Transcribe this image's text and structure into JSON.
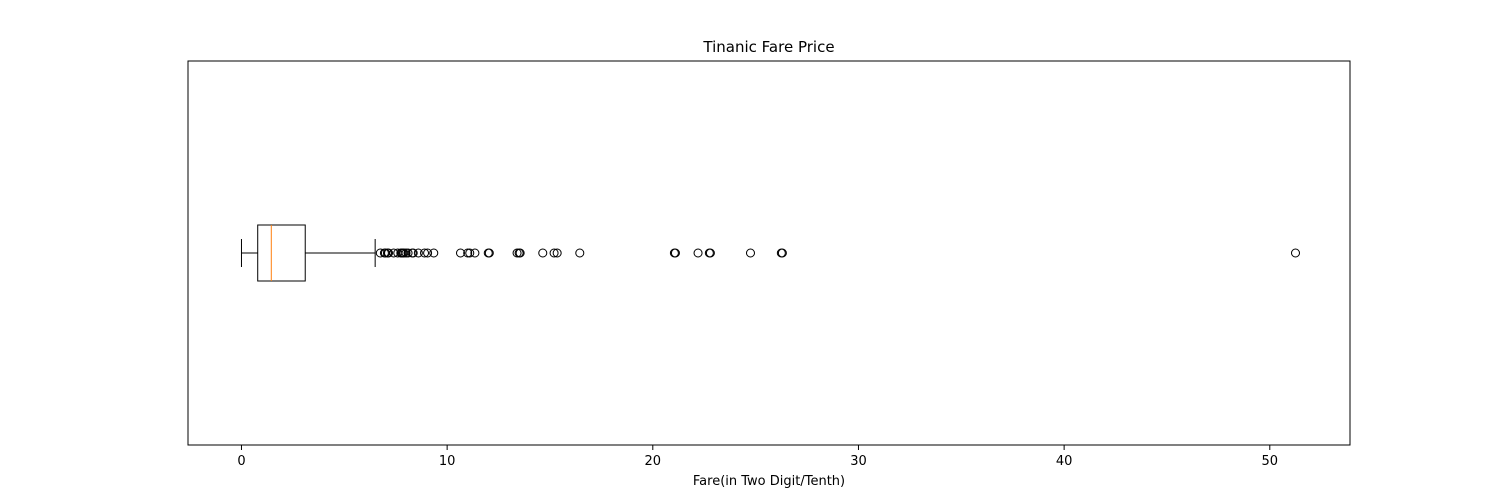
{
  "chart_data": {
    "type": "boxplot",
    "orientation": "horizontal",
    "title": "Tinanic Fare Price",
    "xlabel": "Fare(in Two Digit/Tenth)",
    "ylabel": "",
    "xlim": [
      -2.6,
      53.9
    ],
    "xticks": [
      0,
      10,
      20,
      30,
      40,
      50
    ],
    "xtick_labels": [
      "0",
      "10",
      "20",
      "30",
      "40",
      "50"
    ],
    "yticks_visible": false,
    "grid": false,
    "box": {
      "whisker_low": 0.0,
      "q1": 0.79,
      "median": 1.45,
      "q3": 3.1,
      "whisker_high": 6.5
    },
    "outliers": [
      6.75,
      6.95,
      7.0,
      7.1,
      7.15,
      7.4,
      7.6,
      7.75,
      7.8,
      7.85,
      7.9,
      8.0,
      8.1,
      8.3,
      8.35,
      8.6,
      8.9,
      9.05,
      9.35,
      10.65,
      11.0,
      11.1,
      11.35,
      12.0,
      12.05,
      13.4,
      13.5,
      13.55,
      14.65,
      15.2,
      15.35,
      16.45,
      21.05,
      21.1,
      22.2,
      22.75,
      22.8,
      24.75,
      26.25,
      26.3,
      51.25
    ],
    "colors": {
      "box": "#000000",
      "median": "#ff7f0e",
      "outlier": "#000000"
    }
  }
}
